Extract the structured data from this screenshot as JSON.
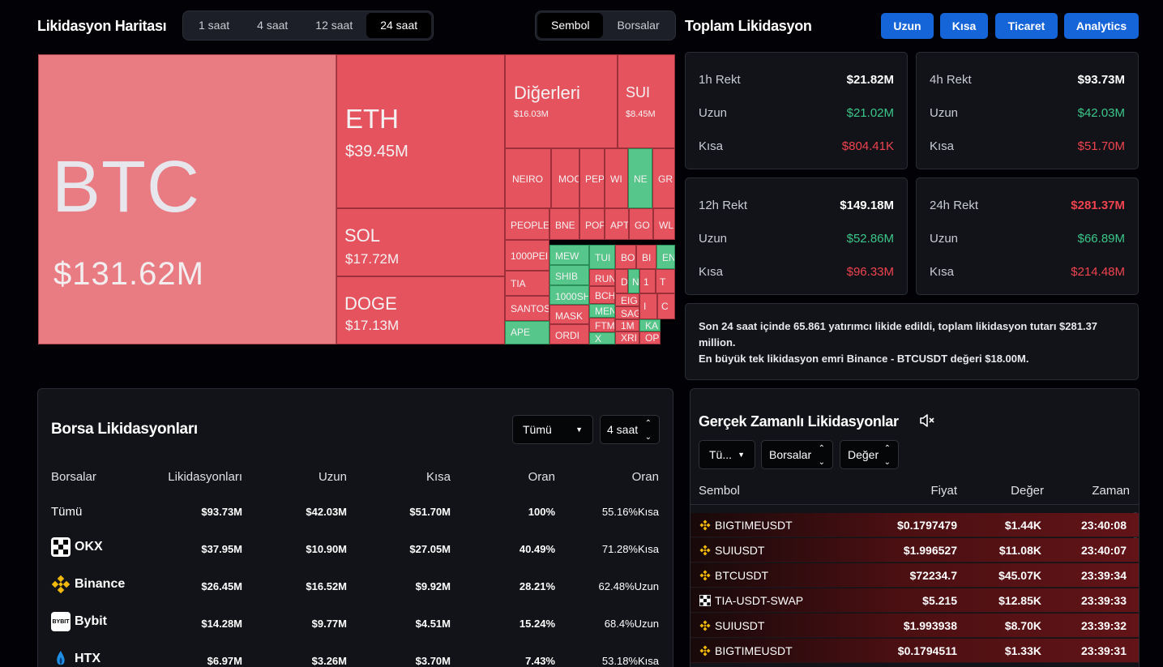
{
  "header": {
    "title": "Likidasyon Haritası",
    "time_tabs": [
      "1 saat",
      "4 saat",
      "12 saat",
      "24 saat"
    ],
    "active_time_tab": "24 saat",
    "view_tabs": [
      "Sembol",
      "Borsalar"
    ],
    "active_view_tab": "Sembol",
    "total_title": "Toplam Likidasyon",
    "buttons": [
      "Uzun",
      "Kısa",
      "Ticaret",
      "Analytics"
    ]
  },
  "treemap": {
    "tiles": [
      {
        "sym": "BTC",
        "val": "$131.62M",
        "color": "pink"
      },
      {
        "sym": "ETH",
        "val": "$39.45M",
        "color": "red"
      },
      {
        "sym": "SOL",
        "val": "$17.72M",
        "color": "red"
      },
      {
        "sym": "DOGE",
        "val": "$17.13M",
        "color": "red"
      },
      {
        "sym": "Diğerleri",
        "val": "$16.03M",
        "color": "red"
      },
      {
        "sym": "SUI",
        "val": "$8.45M",
        "color": "red"
      },
      {
        "sym": "NEIRO",
        "val": "",
        "color": "red"
      },
      {
        "sym": "MOC",
        "val": "",
        "color": "red"
      },
      {
        "sym": "PEP",
        "val": "",
        "color": "red"
      },
      {
        "sym": "WI",
        "val": "",
        "color": "red"
      },
      {
        "sym": "NE",
        "val": "",
        "color": "green"
      },
      {
        "sym": "GR",
        "val": "",
        "color": "red"
      },
      {
        "sym": "PEOPLE",
        "val": "",
        "color": "red"
      },
      {
        "sym": "BNE",
        "val": "",
        "color": "red"
      },
      {
        "sym": "POP",
        "val": "",
        "color": "red"
      },
      {
        "sym": "APT",
        "val": "",
        "color": "red"
      },
      {
        "sym": "GO",
        "val": "",
        "color": "red"
      },
      {
        "sym": "WL",
        "val": "",
        "color": "red"
      },
      {
        "sym": "1000PEI",
        "val": "",
        "color": "red"
      },
      {
        "sym": "MEW",
        "val": "",
        "color": "green"
      },
      {
        "sym": "TUI",
        "val": "",
        "color": "green"
      },
      {
        "sym": "BO",
        "val": "",
        "color": "red"
      },
      {
        "sym": "BI",
        "val": "",
        "color": "red"
      },
      {
        "sym": "EN",
        "val": "",
        "color": "green"
      },
      {
        "sym": "TIA",
        "val": "",
        "color": "red"
      },
      {
        "sym": "SHIB",
        "val": "",
        "color": "green"
      },
      {
        "sym": "RUN",
        "val": "",
        "color": "red"
      },
      {
        "sym": "D",
        "val": "",
        "color": "red"
      },
      {
        "sym": "N",
        "val": "",
        "color": "green"
      },
      {
        "sym": "1",
        "val": "",
        "color": "red"
      },
      {
        "sym": "T",
        "val": "",
        "color": "red"
      },
      {
        "sym": "SANTOS",
        "val": "",
        "color": "red"
      },
      {
        "sym": "1000SH",
        "val": "",
        "color": "green"
      },
      {
        "sym": "BCH",
        "val": "",
        "color": "red"
      },
      {
        "sym": "EIG",
        "val": "",
        "color": "red"
      },
      {
        "sym": "I",
        "val": "",
        "color": "red"
      },
      {
        "sym": "C",
        "val": "",
        "color": "red"
      },
      {
        "sym": "MASK",
        "val": "",
        "color": "red"
      },
      {
        "sym": "MEN",
        "val": "",
        "color": "green"
      },
      {
        "sym": "SAG",
        "val": "",
        "color": "red"
      },
      {
        "sym": "APE",
        "val": "",
        "color": "green"
      },
      {
        "sym": "FTM",
        "val": "",
        "color": "red"
      },
      {
        "sym": "1M",
        "val": "",
        "color": "red"
      },
      {
        "sym": "KA",
        "val": "",
        "color": "green"
      },
      {
        "sym": "ORDI",
        "val": "",
        "color": "red"
      },
      {
        "sym": "X",
        "val": "",
        "color": "green"
      },
      {
        "sym": "XRI",
        "val": "",
        "color": "red"
      },
      {
        "sym": "OP",
        "val": "",
        "color": "red"
      }
    ]
  },
  "totals": [
    {
      "period": "1h Rekt",
      "total": "$21.82M",
      "total_color": "w",
      "long_label": "Uzun",
      "long": "$21.02M",
      "short_label": "Kısa",
      "short": "$804.41K"
    },
    {
      "period": "4h Rekt",
      "total": "$93.73M",
      "total_color": "w",
      "long_label": "Uzun",
      "long": "$42.03M",
      "short_label": "Kısa",
      "short": "$51.70M"
    },
    {
      "period": "12h Rekt",
      "total": "$149.18M",
      "total_color": "w",
      "long_label": "Uzun",
      "long": "$52.86M",
      "short_label": "Kısa",
      "short": "$96.33M"
    },
    {
      "period": "24h Rekt",
      "total": "$281.37M",
      "total_color": "r",
      "long_label": "Uzun",
      "long": "$66.89M",
      "short_label": "Kısa",
      "short": "$214.48M"
    }
  ],
  "summary": {
    "line1": "Son 24 saat içinde 65.861 yatırımcı likide edildi, toplam likidasyon tutarı $281.37 million.",
    "line2": "En büyük tek likidasyon emri Binance - BTCUSDT değeri $18.00M."
  },
  "exchange_liquidations": {
    "title": "Borsa Likidasyonları",
    "filter": "Tümü",
    "period": "4 saat",
    "columns": [
      "Borsalar",
      "Likidasyonları",
      "Uzun",
      "Kısa",
      "Oran",
      "Oran"
    ],
    "rows": [
      {
        "name": "Tümü",
        "logo": "",
        "liq": "$93.73M",
        "long": "$42.03M",
        "short": "$51.70M",
        "share": "100%",
        "ratio": "55.16%Kısa",
        "ratio_color": "r"
      },
      {
        "name": "OKX",
        "logo": "okx",
        "liq": "$37.95M",
        "long": "$10.90M",
        "short": "$27.05M",
        "share": "40.49%",
        "ratio": "71.28%Kısa",
        "ratio_color": "r"
      },
      {
        "name": "Binance",
        "logo": "binance",
        "liq": "$26.45M",
        "long": "$16.52M",
        "short": "$9.92M",
        "share": "28.21%",
        "ratio": "62.48%Uzun",
        "ratio_color": "g"
      },
      {
        "name": "Bybit",
        "logo": "bybit",
        "liq": "$14.28M",
        "long": "$9.77M",
        "short": "$4.51M",
        "share": "15.24%",
        "ratio": "68.4%Uzun",
        "ratio_color": "g"
      },
      {
        "name": "HTX",
        "logo": "htx",
        "liq": "$6.97M",
        "long": "$3.26M",
        "short": "$3.70M",
        "share": "7.43%",
        "ratio": "53.18%Kısa",
        "ratio_color": "r"
      }
    ],
    "bybit_logo_text": "BYBIT"
  },
  "realtime": {
    "title": "Gerçek Zamanlı Likidasyonlar",
    "filter1": "Tü...",
    "filter2": "Borsalar",
    "filter3": "Değer",
    "columns": [
      "Sembol",
      "Fiyat",
      "Değer",
      "Zaman"
    ],
    "rows": [
      {
        "exchange": "binance",
        "symbol": "BIGTIMEUSDT",
        "price": "$0.1797479",
        "value": "$1.44K",
        "time": "23:40:08"
      },
      {
        "exchange": "binance",
        "symbol": "SUIUSDT",
        "price": "$1.996527",
        "value": "$11.08K",
        "time": "23:40:07"
      },
      {
        "exchange": "binance",
        "symbol": "BTCUSDT",
        "price": "$72234.7",
        "value": "$45.07K",
        "time": "23:39:34"
      },
      {
        "exchange": "okx",
        "symbol": "TIA-USDT-SWAP",
        "price": "$5.215",
        "value": "$12.85K",
        "time": "23:39:33"
      },
      {
        "exchange": "binance",
        "symbol": "SUIUSDT",
        "price": "$1.993938",
        "value": "$8.70K",
        "time": "23:39:32"
      },
      {
        "exchange": "binance",
        "symbol": "BIGTIMEUSDT",
        "price": "$0.1794511",
        "value": "$1.33K",
        "time": "23:39:31"
      }
    ]
  },
  "colors": {
    "accent_blue": "#1565d8",
    "long_green": "#3cc78a",
    "short_red": "#f0434f",
    "tile_red": "#e5535f",
    "tile_pink": "#e97b82",
    "tile_green": "#56c68a"
  }
}
